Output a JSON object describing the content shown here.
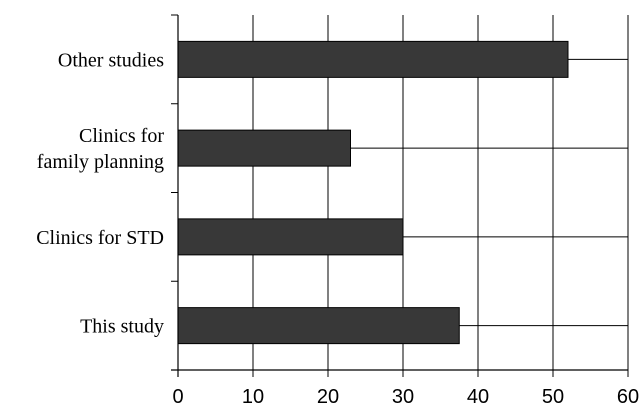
{
  "chart_data": {
    "type": "bar",
    "orientation": "horizontal",
    "categories": [
      [
        "Other studies"
      ],
      [
        "Clinics for",
        "family planning"
      ],
      [
        "Clinics for STD"
      ],
      [
        "This study"
      ]
    ],
    "values": [
      52,
      23,
      30,
      37.5
    ],
    "xlim": [
      0,
      60
    ],
    "xticks": [
      0,
      10,
      20,
      30,
      40,
      50,
      60
    ],
    "grid": "vertical",
    "legend": "none",
    "bar_color": "#383838",
    "title": "",
    "xlabel": "",
    "ylabel": ""
  }
}
